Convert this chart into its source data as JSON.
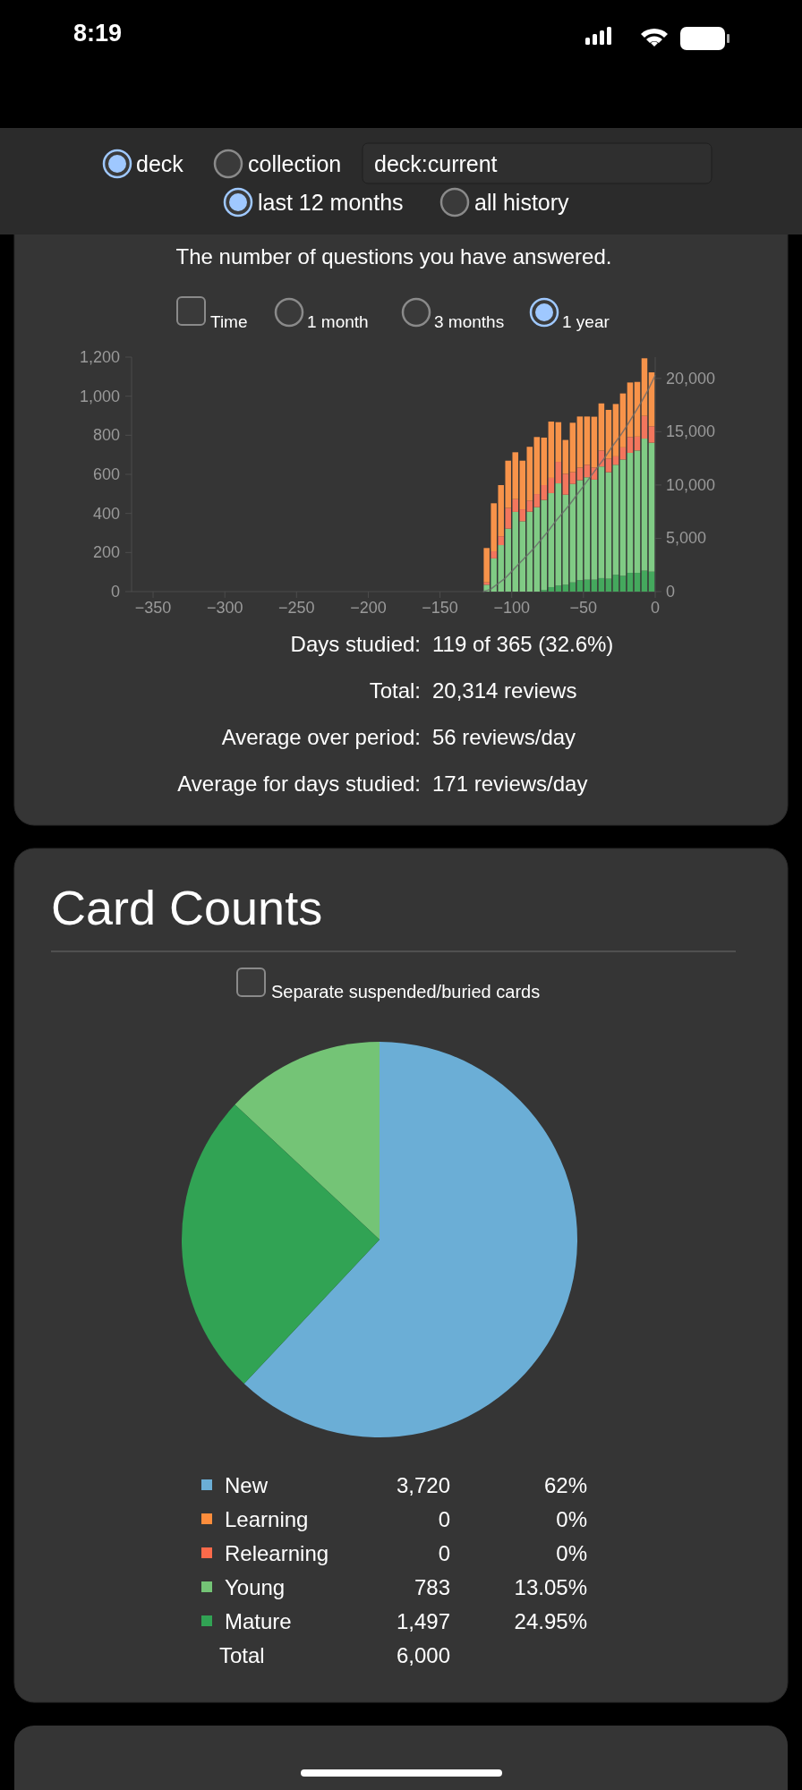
{
  "chart_data": [
    {
      "type": "bar",
      "subtitle": "The number of questions you have answered.",
      "stacked": true,
      "x": [
        -117.5,
        -112.5,
        -107.5,
        -102.5,
        -97.5,
        -92.5,
        -87.5,
        -82.5,
        -77.5,
        -72.5,
        -67.5,
        -62.5,
        -57.5,
        -52.5,
        -47.5,
        -42.5,
        -37.5,
        -32.5,
        -27.5,
        -22.5,
        -17.5,
        -12.5,
        -7.5,
        -2.5
      ],
      "series": [
        {
          "color": "#44a85d",
          "values": [
            0,
            0,
            0,
            0,
            0,
            0,
            0,
            0,
            8,
            23,
            31,
            35,
            47,
            58,
            61,
            61,
            69,
            66,
            86,
            81,
            96,
            96,
            107,
            102
          ]
        },
        {
          "color": "#80cb85",
          "values": [
            35,
            170,
            238,
            322,
            408,
            360,
            409,
            432,
            461,
            481,
            523,
            461,
            504,
            512,
            524,
            512,
            571,
            545,
            563,
            595,
            614,
            626,
            676,
            660
          ]
        },
        {
          "color": "#f3765d",
          "values": [
            12,
            36,
            45,
            106,
            65,
            61,
            57,
            67,
            76,
            78,
            110,
            107,
            60,
            64,
            64,
            62,
            82,
            70,
            43,
            62,
            81,
            71,
            116,
            84
          ]
        },
        {
          "color": "#f7934a",
          "values": [
            176,
            246,
            262,
            242,
            240,
            249,
            275,
            292,
            243,
            288,
            203,
            173,
            253,
            262,
            247,
            260,
            241,
            249,
            268,
            276,
            279,
            280,
            295,
            276
          ]
        },
        {
          "type": "line",
          "axis": "y2",
          "color": "#6a6a6a",
          "x": [
            -120,
            -115,
            -110,
            -105,
            -100,
            -95,
            -90,
            -85,
            -80,
            -75,
            -70,
            -65,
            -60,
            -55,
            -50,
            -45,
            -40,
            -35,
            -30,
            -25,
            -20,
            -15,
            -10,
            -5,
            0
          ],
          "values": [
            0,
            200,
            700,
            1200,
            1900,
            2600,
            3300,
            4000,
            4800,
            5600,
            6500,
            7300,
            8100,
            9000,
            9900,
            10800,
            11700,
            12600,
            13600,
            14500,
            15500,
            16600,
            17700,
            18900,
            20300
          ]
        }
      ],
      "xlim": [
        -365,
        0
      ],
      "xticks": [
        -350,
        -300,
        -250,
        -200,
        -150,
        -100,
        -50,
        0
      ],
      "ylim": [
        0,
        1200
      ],
      "yticks": [
        0,
        200,
        400,
        600,
        800,
        {
          "value": 1000,
          "label": "1,000"
        },
        {
          "value": 1200,
          "label": "1,200"
        }
      ],
      "y2lim": [
        0,
        22000
      ],
      "y2ticks": [
        0,
        {
          "value": 5000,
          "label": "5,000"
        },
        {
          "value": 10000,
          "label": "10,000"
        },
        {
          "value": 15000,
          "label": "15,000"
        },
        {
          "value": 20000,
          "label": "20,000"
        }
      ],
      "annotations": [
        "8:19",
        "deck",
        "collection",
        "deck:current",
        "last 12 months",
        "all history",
        "Time",
        "1 month",
        "3 months",
        "1 year",
        "Days studied:",
        "119 of 365 (32.6%)",
        "Total:",
        "20,314 reviews",
        "Average over period:",
        "56 reviews/day",
        "Average for days studied:",
        "171 reviews/day"
      ]
    },
    {
      "type": "pie",
      "title": "Card Counts",
      "categories": [
        "New",
        "Learning",
        "Relearning",
        "Young",
        "Mature"
      ],
      "values": [
        3720,
        0,
        0,
        783,
        1497
      ],
      "colors": [
        "#6baed6",
        "#fd8d3c",
        "#fb6a4a",
        "#74c476",
        "#31a354"
      ],
      "legend": "bottom",
      "value_labels": [
        "3,720",
        "0",
        "0",
        "783",
        "1,497"
      ],
      "annotations": [
        "Separate suspended/buried cards",
        "Total",
        "6,000",
        "62%",
        "0%",
        "0%",
        "13.05%",
        "24.95%"
      ]
    }
  ]
}
